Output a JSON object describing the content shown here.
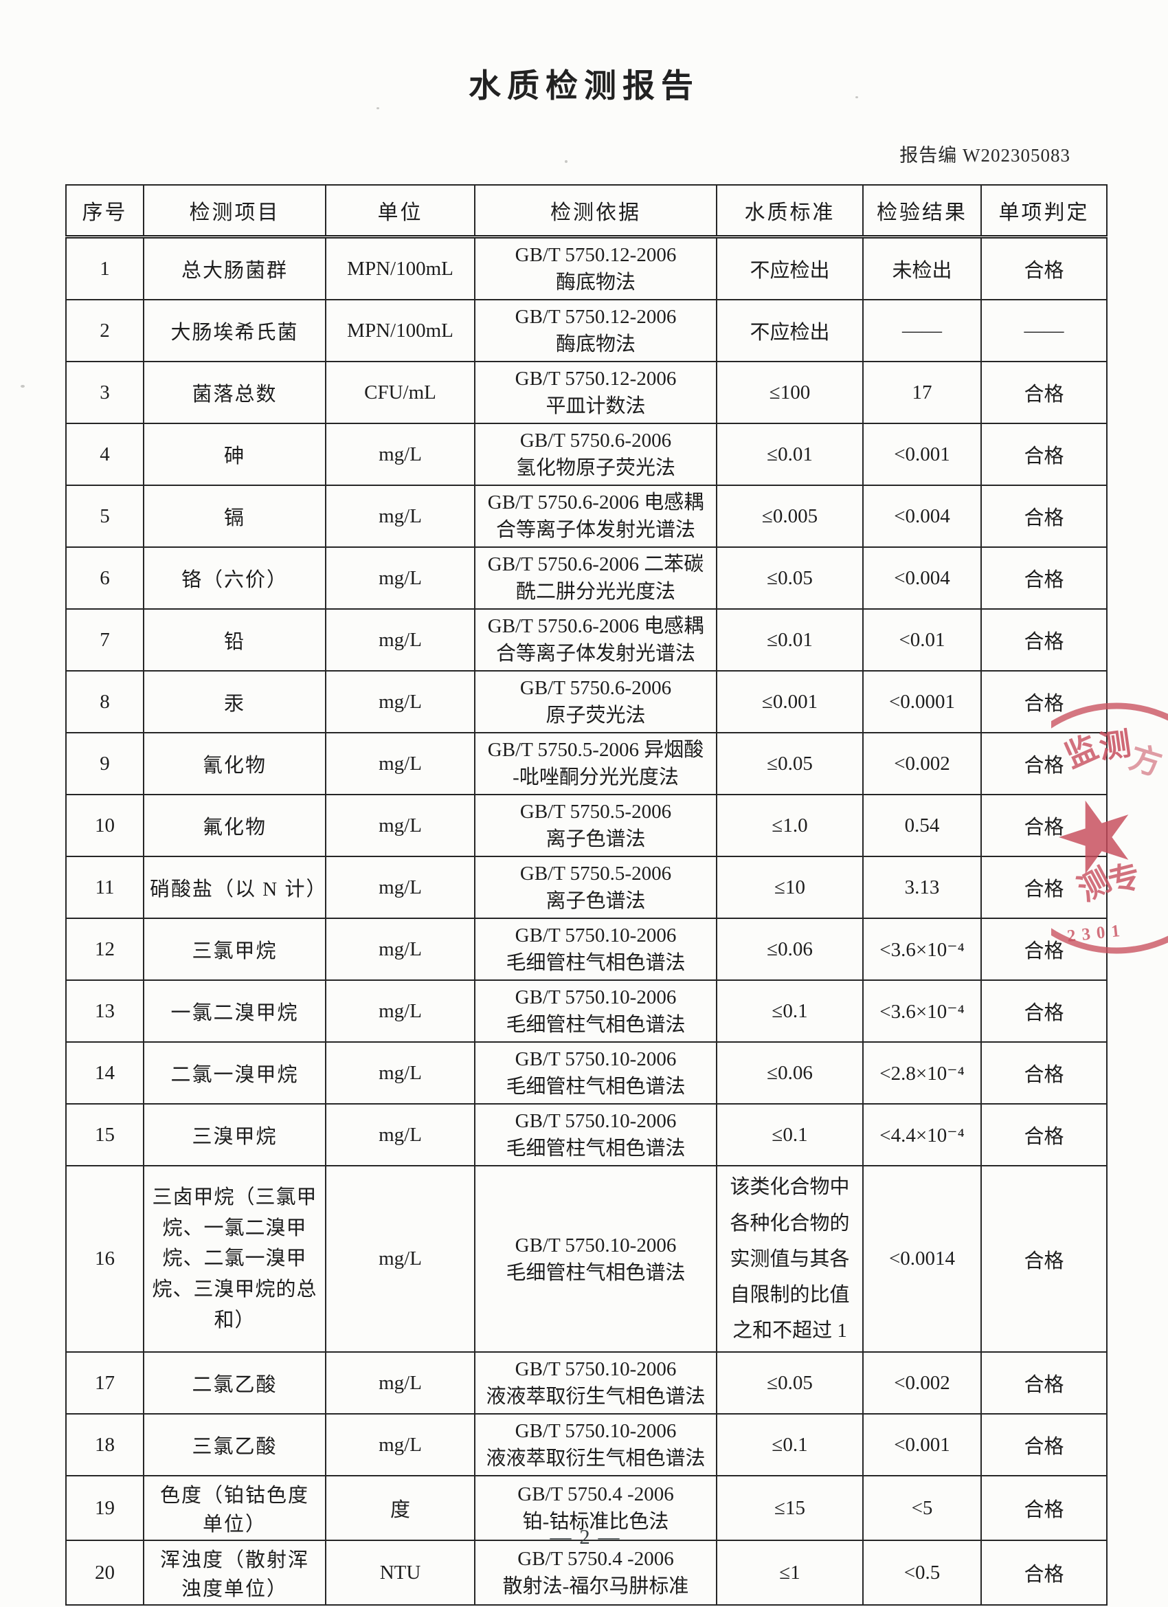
{
  "report": {
    "title": "水质检测报告",
    "report_no": "报告编 W202305083",
    "page_footer": "— 2 —"
  },
  "table": {
    "headers": [
      "序号",
      "检测项目",
      "单位",
      "检测依据",
      "水质标准",
      "检验结果",
      "单项判定"
    ],
    "rows": [
      {
        "no": "1",
        "item": "总大肠菌群",
        "unit": "MPN/100mL",
        "method": "GB/T 5750.12-2006\n酶底物法",
        "standard": "不应检出",
        "result": "未检出",
        "judgement": "合格"
      },
      {
        "no": "2",
        "item": "大肠埃希氏菌",
        "unit": "MPN/100mL",
        "method": "GB/T 5750.12-2006\n酶底物法",
        "standard": "不应检出",
        "result": "——",
        "judgement": "——"
      },
      {
        "no": "3",
        "item": "菌落总数",
        "unit": "CFU/mL",
        "method": "GB/T 5750.12-2006\n平皿计数法",
        "standard": "≤100",
        "result": "17",
        "judgement": "合格"
      },
      {
        "no": "4",
        "item": "砷",
        "unit": "mg/L",
        "method": "GB/T 5750.6-2006\n氢化物原子荧光法",
        "standard": "≤0.01",
        "result": "<0.001",
        "judgement": "合格"
      },
      {
        "no": "5",
        "item": "镉",
        "unit": "mg/L",
        "method": "GB/T 5750.6-2006 电感耦\n合等离子体发射光谱法",
        "standard": "≤0.005",
        "result": "<0.004",
        "judgement": "合格"
      },
      {
        "no": "6",
        "item": "铬（六价）",
        "unit": "mg/L",
        "method": "GB/T 5750.6-2006 二苯碳\n酰二肼分光光度法",
        "standard": "≤0.05",
        "result": "<0.004",
        "judgement": "合格"
      },
      {
        "no": "7",
        "item": "铅",
        "unit": "mg/L",
        "method": "GB/T 5750.6-2006 电感耦\n合等离子体发射光谱法",
        "standard": "≤0.01",
        "result": "<0.01",
        "judgement": "合格"
      },
      {
        "no": "8",
        "item": "汞",
        "unit": "mg/L",
        "method": "GB/T 5750.6-2006\n原子荧光法",
        "standard": "≤0.001",
        "result": "<0.0001",
        "judgement": "合格"
      },
      {
        "no": "9",
        "item": "氰化物",
        "unit": "mg/L",
        "method": "GB/T 5750.5-2006 异烟酸\n-吡唑酮分光光度法",
        "standard": "≤0.05",
        "result": "<0.002",
        "judgement": "合格"
      },
      {
        "no": "10",
        "item": "氟化物",
        "unit": "mg/L",
        "method": "GB/T 5750.5-2006\n离子色谱法",
        "standard": "≤1.0",
        "result": "0.54",
        "judgement": "合格"
      },
      {
        "no": "11",
        "item": "硝酸盐（以 N 计）",
        "unit": "mg/L",
        "method": "GB/T 5750.5-2006\n离子色谱法",
        "standard": "≤10",
        "result": "3.13",
        "judgement": "合格"
      },
      {
        "no": "12",
        "item": "三氯甲烷",
        "unit": "mg/L",
        "method": "GB/T 5750.10-2006\n毛细管柱气相色谱法",
        "standard": "≤0.06",
        "result": "<3.6×10⁻⁴",
        "judgement": "合格"
      },
      {
        "no": "13",
        "item": "一氯二溴甲烷",
        "unit": "mg/L",
        "method": "GB/T 5750.10-2006\n毛细管柱气相色谱法",
        "standard": "≤0.1",
        "result": "<3.6×10⁻⁴",
        "judgement": "合格"
      },
      {
        "no": "14",
        "item": "二氯一溴甲烷",
        "unit": "mg/L",
        "method": "GB/T 5750.10-2006\n毛细管柱气相色谱法",
        "standard": "≤0.06",
        "result": "<2.8×10⁻⁴",
        "judgement": "合格"
      },
      {
        "no": "15",
        "item": "三溴甲烷",
        "unit": "mg/L",
        "method": "GB/T 5750.10-2006\n毛细管柱气相色谱法",
        "standard": "≤0.1",
        "result": "<4.4×10⁻⁴",
        "judgement": "合格"
      },
      {
        "no": "16",
        "item": "三卤甲烷（三氯甲烷、一氯二溴甲烷、二氯一溴甲烷、三溴甲烷的总和）",
        "unit": "mg/L",
        "method": "GB/T 5750.10-2006\n毛细管柱气相色谱法",
        "standard": "该类化合物中各种化合物的实测值与其各自限制的比值之和不超过 1",
        "result": "<0.0014",
        "judgement": "合格"
      },
      {
        "no": "17",
        "item": "二氯乙酸",
        "unit": "mg/L",
        "method": "GB/T 5750.10-2006\n液液萃取衍生气相色谱法",
        "standard": "≤0.05",
        "result": "<0.002",
        "judgement": "合格"
      },
      {
        "no": "18",
        "item": "三氯乙酸",
        "unit": "mg/L",
        "method": "GB/T 5750.10-2006\n液液萃取衍生气相色谱法",
        "standard": "≤0.1",
        "result": "<0.001",
        "judgement": "合格"
      },
      {
        "no": "19",
        "item": "色度（铂钴色度单位）",
        "unit": "度",
        "method": "GB/T 5750.4 -2006\n铂-钴标准比色法",
        "standard": "≤15",
        "result": "<5",
        "judgement": "合格"
      },
      {
        "no": "20",
        "item": "浑浊度（散射浑浊度单位）",
        "unit": "NTU",
        "method": "GB/T 5750.4 -2006\n散射法-福尔马肼标准",
        "standard": "≤1",
        "result": "<0.5",
        "judgement": "合格"
      }
    ]
  },
  "stamp": {
    "ring_top_1": "监",
    "ring_top_2": "测",
    "ring_top_3": "方",
    "ring_bottom_1": "测",
    "ring_bottom_2": "专",
    "code": "2301",
    "color": "#c84f5e"
  }
}
